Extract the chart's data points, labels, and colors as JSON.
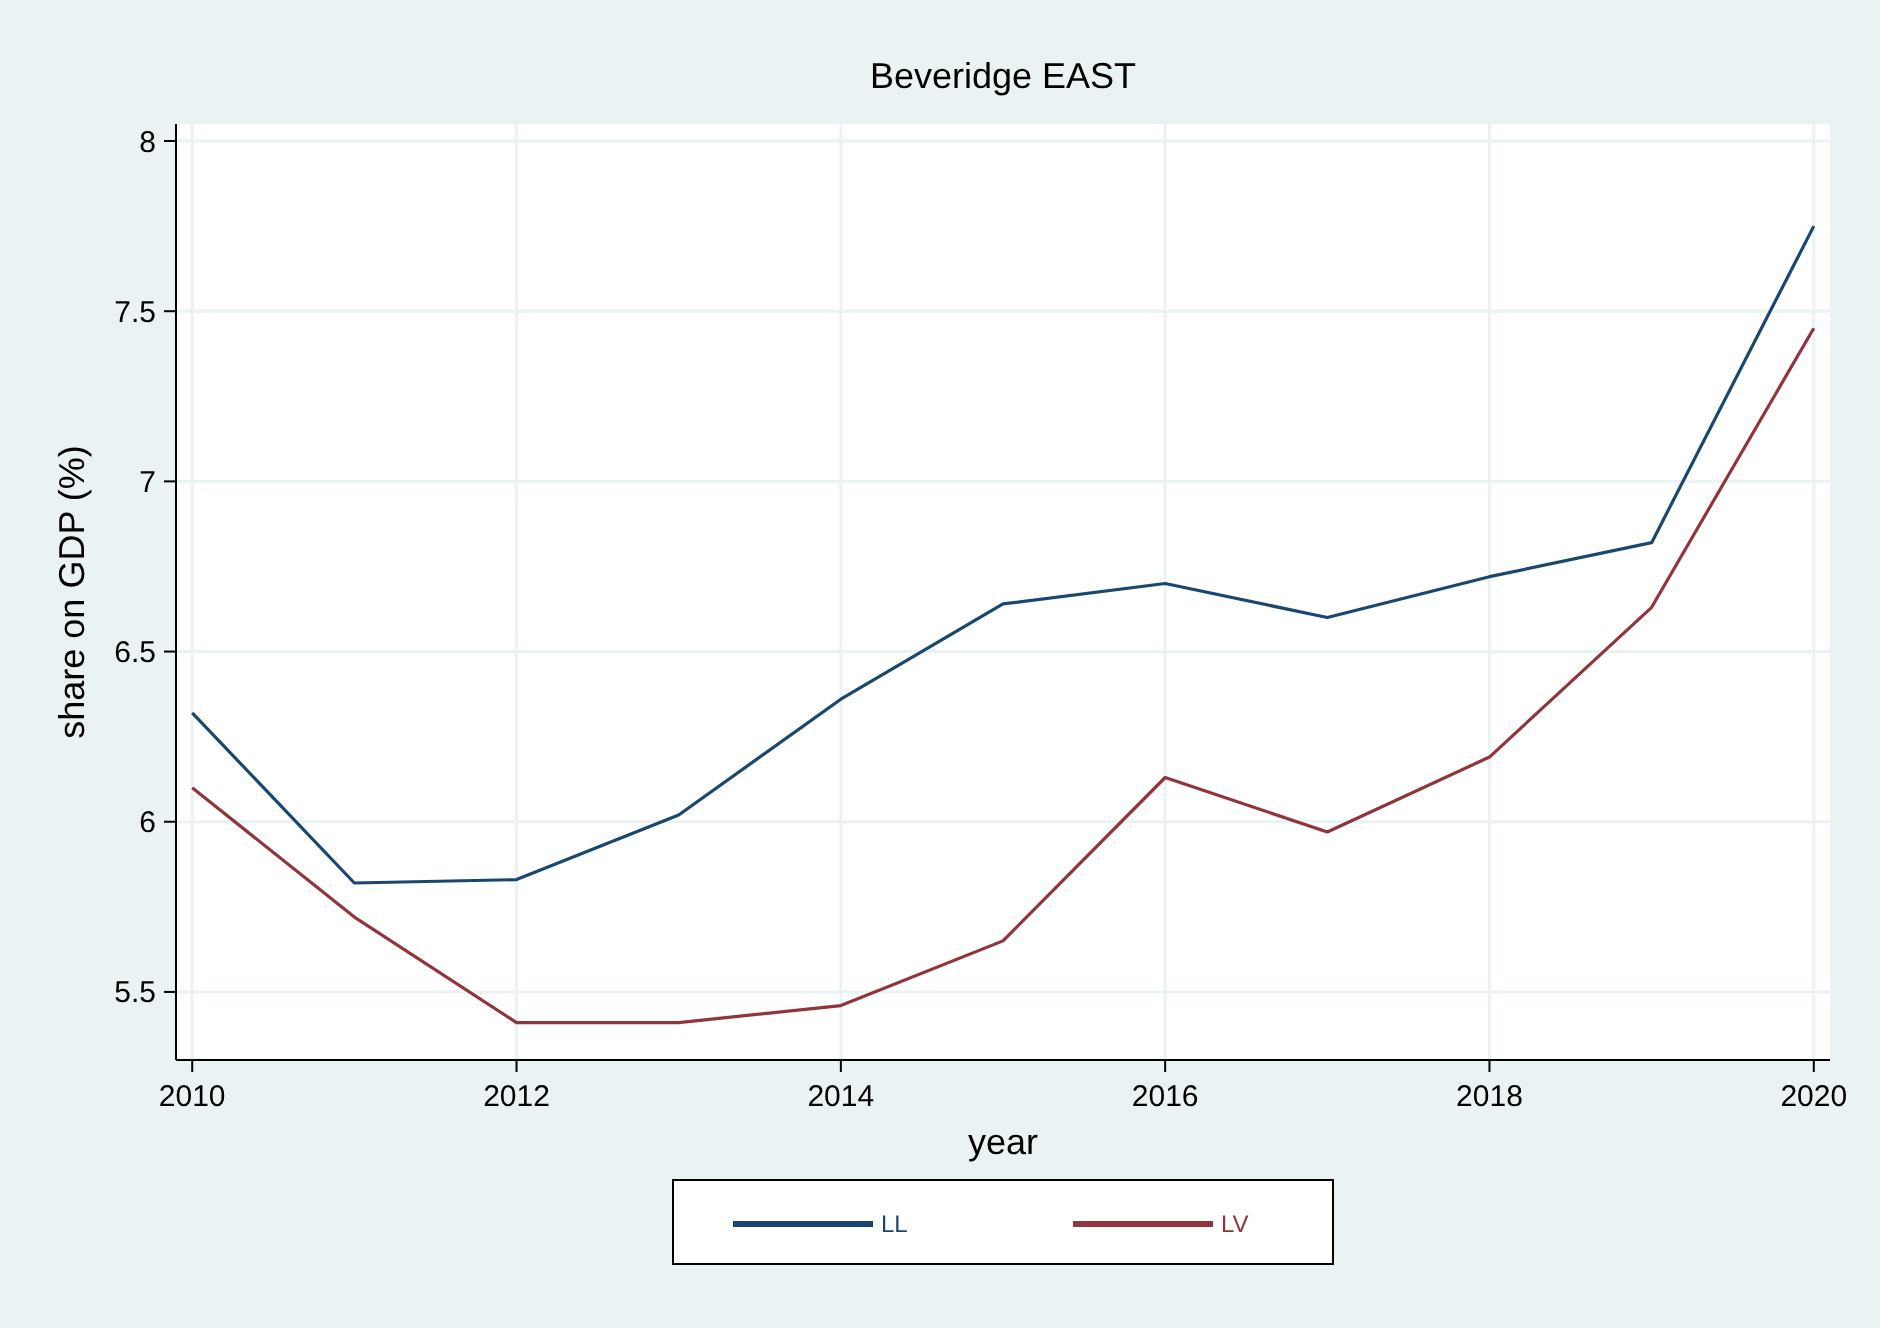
{
  "chart_data": {
    "type": "line",
    "title": "Beveridge EAST",
    "xlabel": "year",
    "ylabel": "share on GDP (%)",
    "x": [
      2010,
      2011,
      2012,
      2013,
      2014,
      2015,
      2016,
      2017,
      2018,
      2019,
      2020
    ],
    "series": [
      {
        "name": "LL",
        "color": "#1a476f",
        "values": [
          6.32,
          5.82,
          5.83,
          6.02,
          6.36,
          6.64,
          6.7,
          6.6,
          6.72,
          6.82,
          7.75
        ]
      },
      {
        "name": "LV",
        "color": "#90353b",
        "values": [
          6.1,
          5.72,
          5.41,
          5.41,
          5.46,
          5.65,
          6.13,
          5.97,
          6.19,
          6.63,
          7.45
        ]
      }
    ],
    "xlim": [
      2009.9,
      2020.1
    ],
    "xticks": [
      2010,
      2012,
      2014,
      2016,
      2018,
      2020
    ],
    "ylim": [
      5.3,
      8.05
    ],
    "yticks": [
      5.5,
      6,
      6.5,
      7,
      7.5,
      8
    ],
    "grid": true,
    "legend": "bottom",
    "marker": "none",
    "line_style": "solid"
  }
}
